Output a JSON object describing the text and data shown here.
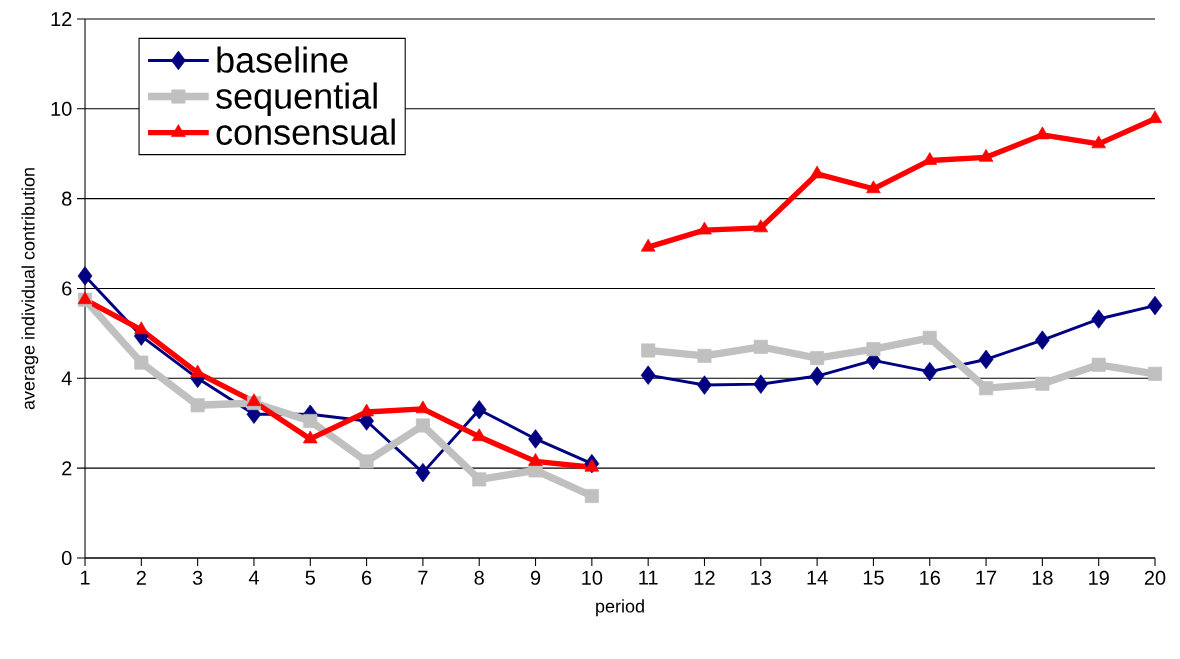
{
  "chart_data": {
    "type": "line",
    "xlabel": "period",
    "ylabel": "average individual contribution",
    "x": [
      1,
      2,
      3,
      4,
      5,
      6,
      7,
      8,
      9,
      10,
      10.5,
      11,
      12,
      13,
      14,
      15,
      16,
      17,
      18,
      19,
      20
    ],
    "series": [
      {
        "name": "baseline",
        "color": "#000080",
        "marker": "diamond",
        "values": [
          6.28,
          4.94,
          4.0,
          3.2,
          3.2,
          3.05,
          1.9,
          3.3,
          2.65,
          2.1,
          null,
          4.07,
          3.85,
          3.87,
          4.05,
          4.4,
          4.15,
          4.42,
          4.85,
          5.32,
          5.62
        ]
      },
      {
        "name": "sequential",
        "color": "#c0c0c0",
        "marker": "square",
        "values": [
          5.75,
          4.35,
          3.4,
          3.45,
          3.05,
          2.15,
          2.95,
          1.75,
          1.95,
          1.38,
          null,
          4.62,
          4.5,
          4.7,
          4.45,
          4.65,
          4.9,
          3.78,
          3.88,
          4.3,
          4.1
        ]
      },
      {
        "name": "consensual",
        "color": "#ff0000",
        "marker": "triangle",
        "values": [
          5.75,
          5.08,
          4.12,
          3.48,
          2.65,
          3.25,
          3.32,
          2.7,
          2.15,
          2.02,
          null,
          6.92,
          7.3,
          7.35,
          8.55,
          8.22,
          8.85,
          8.92,
          9.42,
          9.22,
          9.78
        ]
      }
    ],
    "xlim": [
      1,
      20
    ],
    "xticks": [
      1,
      2,
      3,
      4,
      5,
      6,
      7,
      8,
      9,
      10,
      11,
      12,
      13,
      14,
      15,
      16,
      17,
      18,
      19,
      20
    ],
    "ylim": [
      0,
      12
    ],
    "yticks": [
      0,
      2,
      4,
      6,
      8,
      10,
      12
    ],
    "grid": "y",
    "legend": "top left",
    "line_style": "solid"
  }
}
